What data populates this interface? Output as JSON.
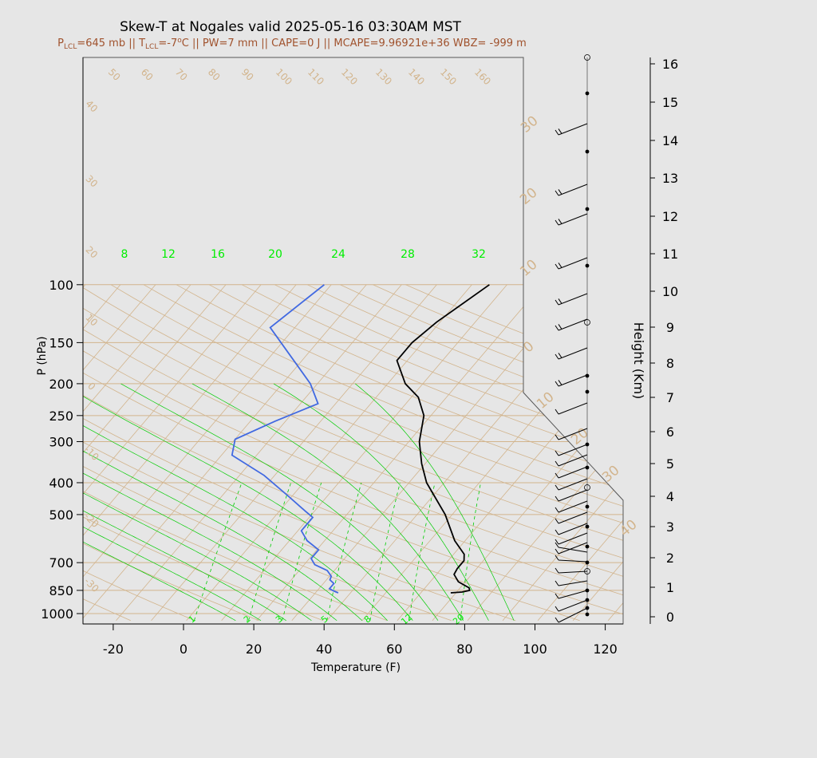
{
  "header": {
    "title": "Skew-T at Nogales valid 2025-05-16 03:30AM MST",
    "subtitle_parts": [
      "P",
      "LCL",
      "=645 mb || T",
      "LCL",
      "=-7",
      "o",
      "C || PW=7 mm || CAPE=0 J || MCAPE=9.96921e+36 WBZ= -999 m"
    ]
  },
  "colors": {
    "temperature": "#000000",
    "dewpoint": "#4169e1",
    "isotherm": "#d2b48c",
    "dry_adiabat": "#d2b48c",
    "moist_adiabat": "#00cc00",
    "mixing_ratio": "#00cc00",
    "isobar": "#d2b48c",
    "background": "#e6e6e6"
  },
  "chart_data": {
    "type": "skew-t",
    "title": "Skew-T at Nogales valid 2025-05-16 03:30AM MST",
    "xlabel": "Temperature (F)",
    "ylabel": "P (hPa)",
    "y2label": "Height (Km)",
    "y_scale": "log (inverted)",
    "xlim": [
      -28,
      125
    ],
    "ylim": [
      1050,
      100
    ],
    "x_ticks": [
      -20,
      0,
      20,
      40,
      60,
      80,
      100,
      120
    ],
    "y_ticks": [
      1000,
      850,
      700,
      500,
      400,
      300,
      250,
      200,
      150,
      100
    ],
    "height_ticks_km": [
      0,
      1,
      2,
      3,
      4,
      5,
      6,
      7,
      8,
      9,
      10,
      11,
      12,
      13,
      14,
      15,
      16
    ],
    "isotherm_labels_F": [
      "50",
      "60",
      "70",
      "80",
      "90",
      "100",
      "110",
      "120",
      "130",
      "140",
      "150",
      "160"
    ],
    "isotherm_labels_left": [
      "40",
      "30",
      "20",
      "10",
      "0",
      "-10",
      "-20",
      "-30"
    ],
    "isotherm_labels_right": [
      "30",
      "20",
      "10",
      "0",
      "10",
      "20",
      "30",
      "40"
    ],
    "moist_adiabat_labels": [
      "8",
      "12",
      "16",
      "20",
      "24",
      "28",
      "32"
    ],
    "mixing_ratio_labels": [
      "1",
      "2",
      "3",
      "5",
      "8",
      "12",
      "20"
    ],
    "temperature_profile": [
      {
        "p": 865,
        "t": 68.5
      },
      {
        "p": 860,
        "t": 71.5
      },
      {
        "p": 850,
        "t": 73.3
      },
      {
        "p": 835,
        "t": 72.5
      },
      {
        "p": 800,
        "t": 68
      },
      {
        "p": 760,
        "t": 65
      },
      {
        "p": 730,
        "t": 64.5
      },
      {
        "p": 690,
        "t": 64.5
      },
      {
        "p": 660,
        "t": 63
      },
      {
        "p": 600,
        "t": 57
      },
      {
        "p": 500,
        "t": 48
      },
      {
        "p": 400,
        "t": 35
      },
      {
        "p": 350,
        "t": 29
      },
      {
        "p": 300,
        "t": 23
      },
      {
        "p": 250,
        "t": 18
      },
      {
        "p": 220,
        "t": 12
      },
      {
        "p": 200,
        "t": 5
      },
      {
        "p": 170,
        "t": -3
      },
      {
        "p": 150,
        "t": -3
      },
      {
        "p": 130,
        "t": -1
      },
      {
        "p": 100,
        "t": 5
      }
    ],
    "dewpoint_profile": [
      {
        "p": 865,
        "t": 36.5
      },
      {
        "p": 855,
        "t": 35
      },
      {
        "p": 840,
        "t": 33
      },
      {
        "p": 810,
        "t": 33
      },
      {
        "p": 790,
        "t": 31
      },
      {
        "p": 770,
        "t": 30.5
      },
      {
        "p": 740,
        "t": 28
      },
      {
        "p": 710,
        "t": 23
      },
      {
        "p": 680,
        "t": 20.5
      },
      {
        "p": 640,
        "t": 20.5
      },
      {
        "p": 600,
        "t": 15
      },
      {
        "p": 560,
        "t": 11
      },
      {
        "p": 510,
        "t": 11
      },
      {
        "p": 480,
        "t": 6
      },
      {
        "p": 440,
        "t": -1
      },
      {
        "p": 380,
        "t": -13
      },
      {
        "p": 330,
        "t": -27
      },
      {
        "p": 295,
        "t": -30
      },
      {
        "p": 260,
        "t": -23
      },
      {
        "p": 230,
        "t": -15
      },
      {
        "p": 200,
        "t": -22
      },
      {
        "p": 135,
        "t": -47
      },
      {
        "p": 100,
        "t": -42
      }
    ]
  }
}
